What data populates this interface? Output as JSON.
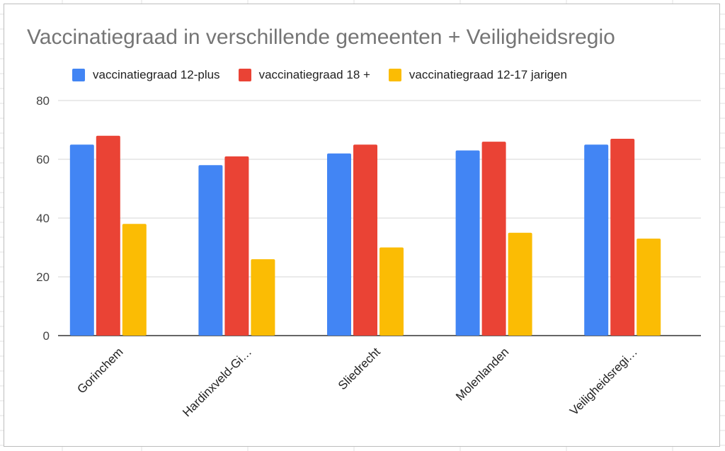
{
  "chart_data": {
    "type": "bar",
    "title": "Vaccinatiegraad in verschillende gemeenten + Veiligheidsregio",
    "xlabel": "",
    "ylabel": "",
    "categories": [
      "Gorinchem",
      "Hardinxveld-Gi…",
      "Sliedrecht",
      "Molenlanden",
      "Veiligheidsregi…"
    ],
    "series": [
      {
        "name": "vaccinatiegraad 12-plus",
        "color": "#4285f4",
        "values": [
          65,
          58,
          62,
          63,
          65
        ]
      },
      {
        "name": "vaccinatiegraad 18 +",
        "color": "#ea4335",
        "values": [
          68,
          61,
          65,
          66,
          67
        ]
      },
      {
        "name": "vaccinatiegraad 12-17 jarigen",
        "color": "#fbbc04",
        "values": [
          38,
          26,
          30,
          35,
          33
        ]
      }
    ],
    "ylim": [
      0,
      80
    ],
    "yticks": [
      0,
      20,
      40,
      60,
      80
    ],
    "grid": true,
    "legend_position": "top"
  }
}
